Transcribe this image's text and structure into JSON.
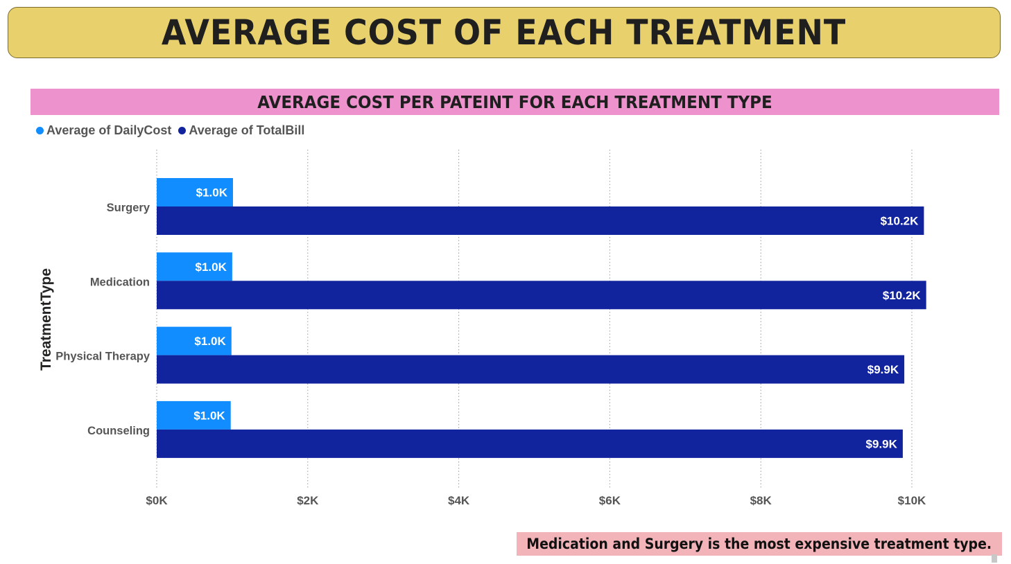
{
  "page": {
    "title": "AVERAGE COST OF EACH TREATMENT",
    "note": "Medication and Surgery is the most expensive treatment type."
  },
  "colors": {
    "title_banner": "#e8d16d",
    "chart_header": "#ee92cd",
    "note_bg": "#f2b4b8",
    "daily_cost": "#118dff",
    "total_bill": "#12239e"
  },
  "chart_data": {
    "type": "bar",
    "orientation": "horizontal",
    "title": "AVERAGE COST PER PATEINT FOR EACH TREATMENT TYPE",
    "ylabel": "TreatmentType",
    "xlabel": "",
    "categories": [
      "Surgery",
      "Medication",
      "Physical Therapy",
      "Counseling"
    ],
    "series": [
      {
        "name": "Average of DailyCost",
        "color": "#118dff",
        "values": [
          1010,
          1000,
          990,
          980
        ],
        "labels": [
          "$1.0K",
          "$1.0K",
          "$1.0K",
          "$1.0K"
        ]
      },
      {
        "name": "Average of TotalBill",
        "color": "#12239e",
        "values": [
          10160,
          10190,
          9900,
          9880
        ],
        "labels": [
          "$10.2K",
          "$10.2K",
          "$9.9K",
          "$9.9K"
        ]
      }
    ],
    "xlim": [
      0,
      10000
    ],
    "xticks": [
      0,
      2000,
      4000,
      6000,
      8000,
      10000
    ],
    "xtick_labels": [
      "$0K",
      "$2K",
      "$4K",
      "$6K",
      "$8K",
      "$10K"
    ],
    "grid": true,
    "legend": "top-left"
  }
}
